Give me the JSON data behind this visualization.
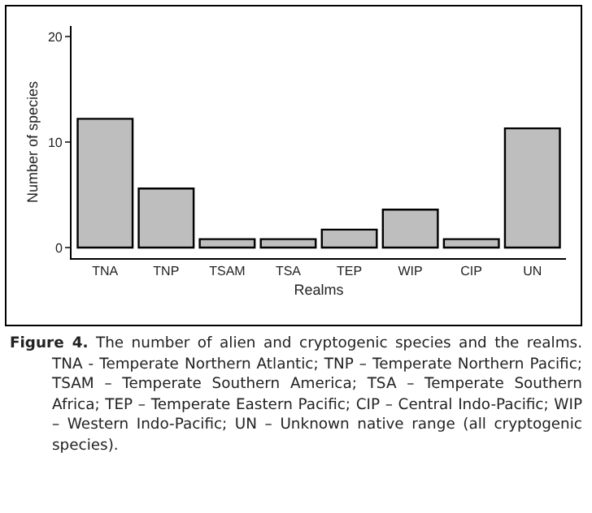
{
  "chart_data": {
    "type": "bar",
    "xlabel": "Realms",
    "ylabel": "Number of species",
    "categories": [
      "TNA",
      "TNP",
      "TSAM",
      "TSA",
      "TEP",
      "WIP",
      "CIP",
      "UN"
    ],
    "values": [
      12.2,
      5.6,
      0.8,
      0.8,
      1.7,
      3.6,
      0.8,
      11.3
    ],
    "color": "#bebebe",
    "ylim": [
      -1,
      21
    ],
    "yticks": [
      0,
      10,
      20
    ],
    "grid": false,
    "annotations": [
      "Figure 4. The number of alien and cryptogenic species and the realms. TNA - Temperate Northern Atlantic; TNP – Temperate Northern Pacific; TSAM – Temperate Southern America; TSA – Temperate Southern Africa; TEP – Temperate Eastern Pacific; CIP – Central Indo-Pacific; WIP – Western Indo-Pacific; UN – Unknown native range (all cryptogenic species)."
    ]
  }
}
